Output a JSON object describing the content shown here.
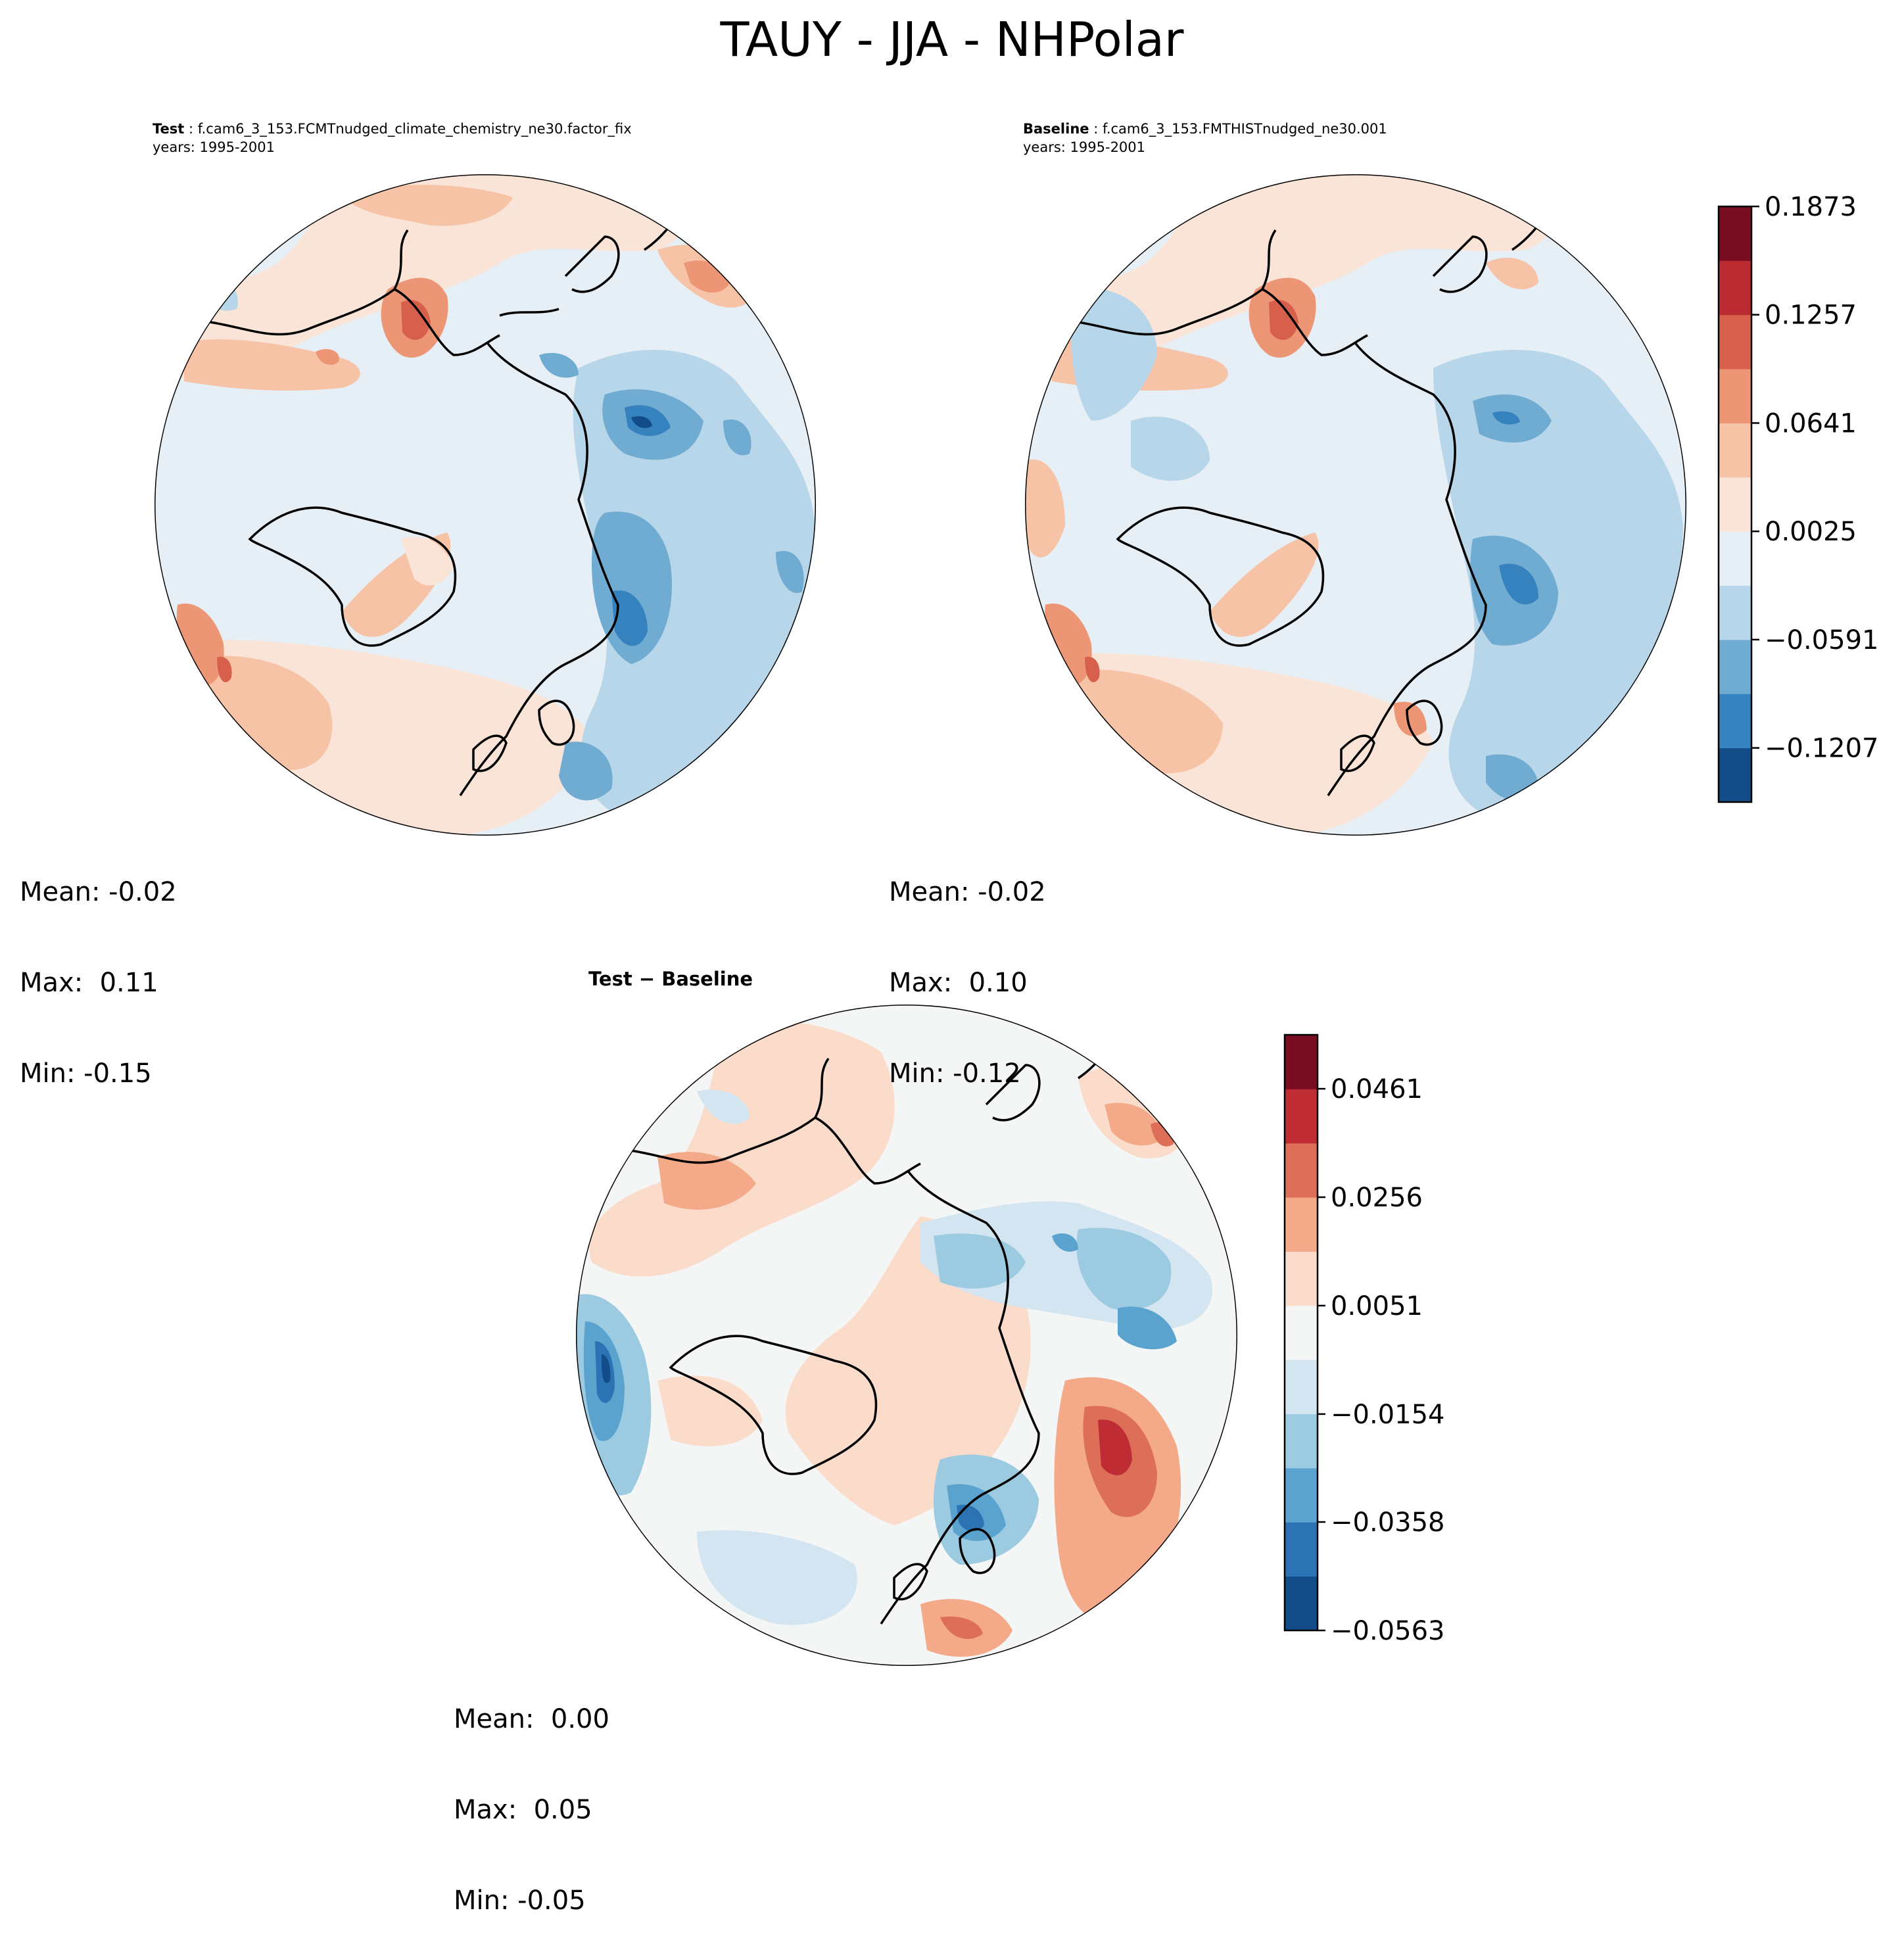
{
  "title": "TAUY - JJA - NHPolar",
  "panels": {
    "test": {
      "label": "Test",
      "case": "f.cam6_3_153.FCMTnudged_climate_chemistry_ne30.factor_fix",
      "years": "years: 1995-2001",
      "stats": {
        "mean": "Mean: -0.02",
        "max": "Max:  0.11",
        "min": "Min: -0.15"
      }
    },
    "baseline": {
      "label": "Baseline",
      "case": "f.cam6_3_153.FMTHISTnudged_ne30.001",
      "years": "years: 1995-2001",
      "stats": {
        "mean": "Mean: -0.02",
        "max": "Max:  0.10",
        "min": "Min: -0.12"
      }
    },
    "diff": {
      "label": "Test − Baseline",
      "stats": {
        "mean": "Mean:  0.00",
        "max": "Max:  0.05",
        "min": "Min: -0.05"
      }
    }
  },
  "chart_data": [
    {
      "type": "heatmap",
      "name": "main colorbar (Test & Baseline)",
      "min": -0.1515,
      "max": 0.1873,
      "tick_labels": [
        "−0.1207",
        "−0.0591",
        "0.0025",
        "0.0641",
        "0.1257",
        "0.1873"
      ],
      "ticks": [
        -0.1207,
        -0.0591,
        0.0025,
        0.0641,
        0.1257,
        0.1873
      ],
      "levels": 11,
      "colors": [
        "#124d8a",
        "#3582bf",
        "#70abd2",
        "#b8d6e9",
        "#e6eff5",
        "#fae4d7",
        "#f7c3a6",
        "#ec9676",
        "#d7604d",
        "#b92a31",
        "#790d22"
      ]
    },
    {
      "type": "heatmap",
      "name": "difference colorbar",
      "min": -0.0563,
      "max": 0.0563,
      "tick_labels": [
        "−0.0563",
        "−0.0358",
        "−0.0154",
        "0.0051",
        "0.0256",
        "0.0461"
      ],
      "ticks": [
        -0.0563,
        -0.0358,
        -0.0154,
        0.0051,
        0.0256,
        0.0461
      ],
      "levels": 11,
      "colors": [
        "#124d8a",
        "#2c73b4",
        "#5ba3cf",
        "#9ccae1",
        "#d3e5f1",
        "#f4f6f6",
        "#fbdcca",
        "#f4aa89",
        "#dd6f58",
        "#bf2c34",
        "#790d22"
      ]
    }
  ]
}
